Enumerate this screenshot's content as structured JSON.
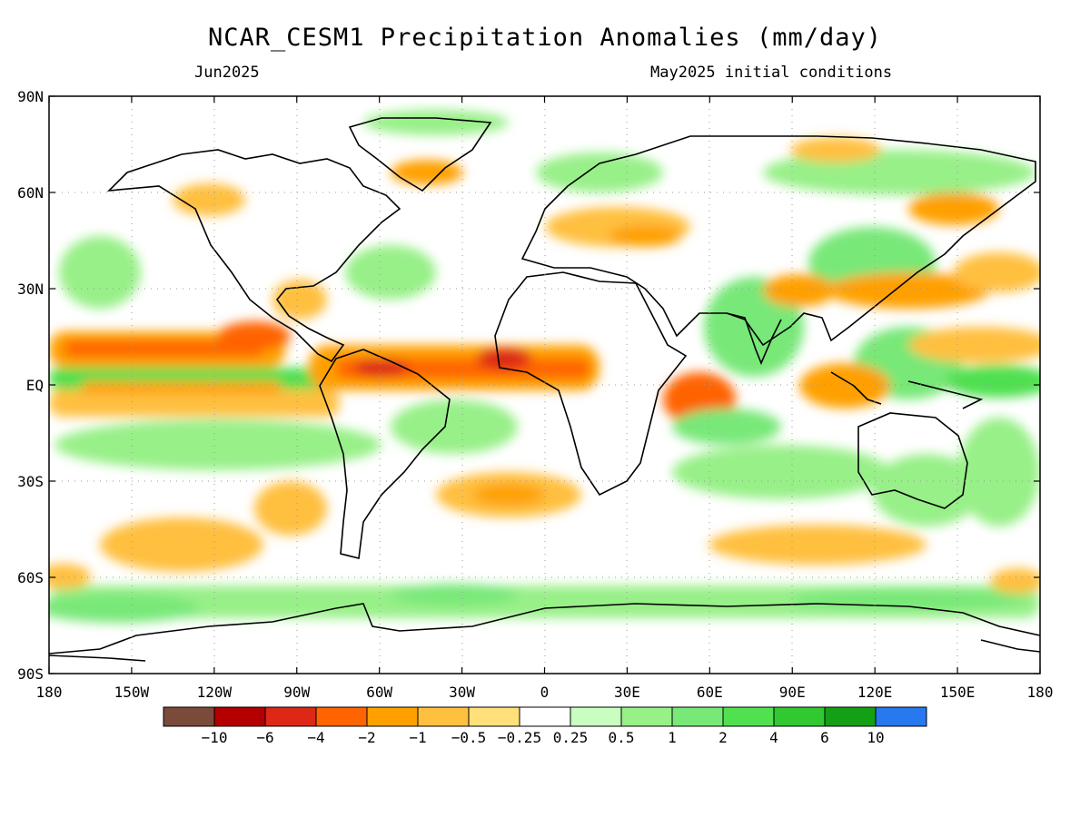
{
  "title": "NCAR_CESM1 Precipitation Anomalies (mm/day)",
  "valid_month": "Jun2025",
  "initial_conditions": "May2025 initial conditions",
  "map": {
    "lat_labels": [
      "90N",
      "60N",
      "30N",
      "EQ",
      "30S",
      "60S",
      "90S"
    ],
    "lon_labels": [
      "180",
      "150W",
      "120W",
      "90W",
      "60W",
      "30W",
      "0",
      "30E",
      "60E",
      "90E",
      "120E",
      "150E",
      "180"
    ],
    "grid": true
  },
  "colorbar": {
    "colors": [
      "#7a4a3a",
      "#b40000",
      "#dc2814",
      "#ff6400",
      "#ffa000",
      "#ffc040",
      "#ffe07a",
      "#ffffff",
      "#c8ffc0",
      "#98f088",
      "#78e878",
      "#50e050",
      "#32c832",
      "#14a014",
      "#2878f0"
    ],
    "tick_labels": [
      "-10",
      "-6",
      "-4",
      "-2",
      "-1",
      "-0.5",
      "-0.25",
      "0.25",
      "0.5",
      "1",
      "2",
      "4",
      "6",
      "10"
    ]
  }
}
